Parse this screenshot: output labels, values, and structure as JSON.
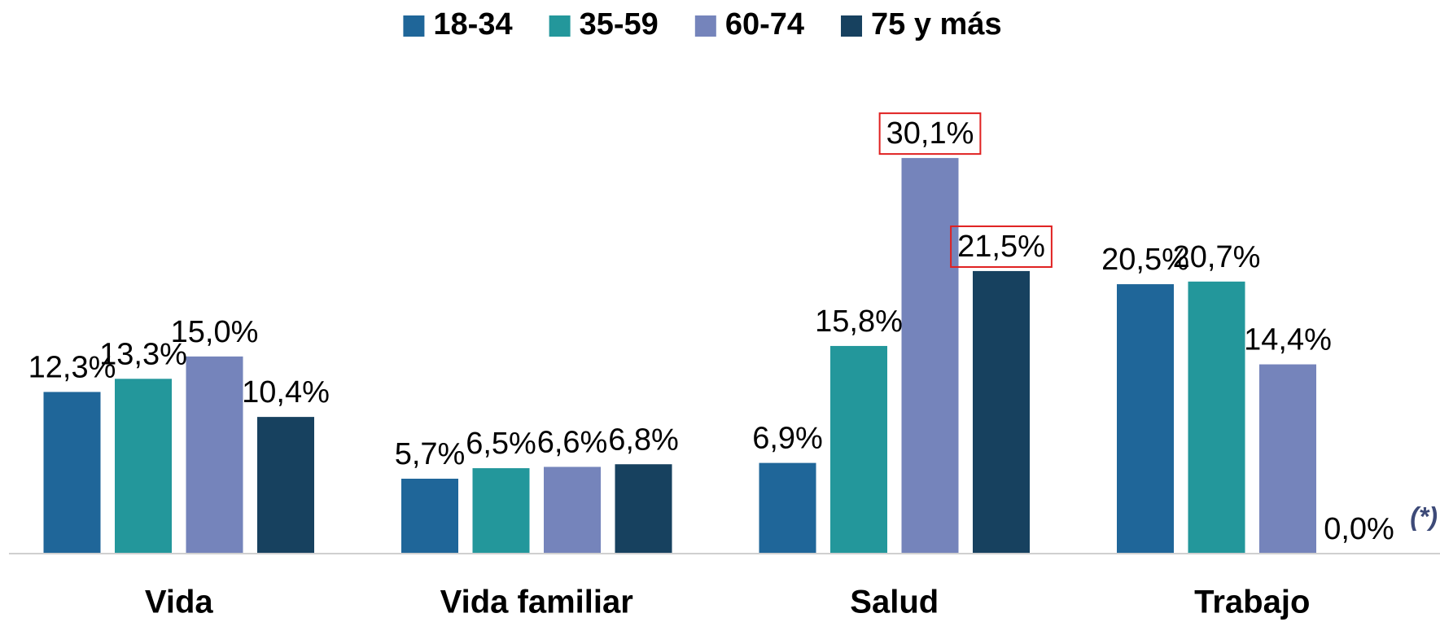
{
  "chart_data": {
    "type": "bar",
    "categories": [
      "Vida",
      "Vida familiar",
      "Salud",
      "Trabajo"
    ],
    "series": [
      {
        "name": "18-34",
        "color": "#1f6699",
        "values": [
          12.3,
          5.7,
          6.9,
          20.5
        ],
        "value_labels": [
          "12,3%",
          "5,7%",
          "6,9%",
          "20,5%"
        ]
      },
      {
        "name": "35-59",
        "color": "#23979b",
        "values": [
          13.3,
          6.5,
          15.8,
          20.7
        ],
        "value_labels": [
          "13,3%",
          "6,5%",
          "15,8%",
          "20,7%"
        ]
      },
      {
        "name": "60-74",
        "color": "#7584bb",
        "values": [
          15.0,
          6.6,
          30.1,
          14.4
        ],
        "value_labels": [
          "15,0%",
          "6,6%",
          "30,1%",
          "14,4%"
        ]
      },
      {
        "name": "75 y más",
        "color": "#17415f",
        "values": [
          10.4,
          6.8,
          21.5,
          0.0
        ],
        "value_labels": [
          "10,4%",
          "6,8%",
          "21,5%",
          "0,0%"
        ]
      }
    ],
    "annotations": [
      "(*)"
    ],
    "ylim": [
      0,
      35
    ],
    "legend": "top"
  }
}
